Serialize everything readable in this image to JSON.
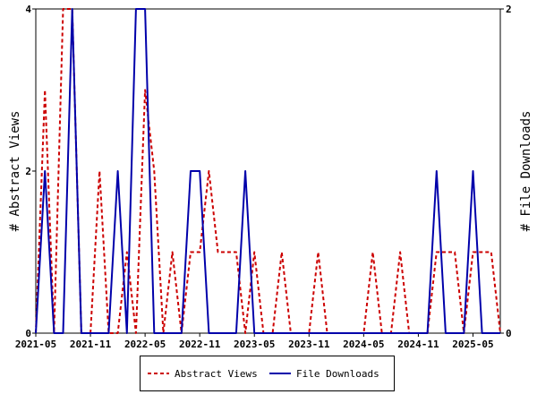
{
  "chart_data": {
    "type": "line",
    "xlabel": "",
    "ylabel_left": "# Abstract Views",
    "ylabel_right": "# File Downloads",
    "x_tick_labels": [
      "2021-05",
      "2021-11",
      "2022-05",
      "2022-11",
      "2023-05",
      "2023-11",
      "2024-05",
      "2024-11",
      "2025-05"
    ],
    "ylim_left": [
      0,
      4
    ],
    "ylim_right": [
      0,
      2
    ],
    "y_ticks_left": [
      0,
      2,
      4
    ],
    "y_ticks_right": [
      0,
      2
    ],
    "x": [
      "2021-05",
      "2021-06",
      "2021-07",
      "2021-08",
      "2021-09",
      "2021-10",
      "2021-11",
      "2021-12",
      "2022-01",
      "2022-02",
      "2022-03",
      "2022-04",
      "2022-05",
      "2022-06",
      "2022-07",
      "2022-08",
      "2022-09",
      "2022-10",
      "2022-11",
      "2022-12",
      "2023-01",
      "2023-02",
      "2023-03",
      "2023-04",
      "2023-05",
      "2023-06",
      "2023-07",
      "2023-08",
      "2023-09",
      "2023-10",
      "2023-11",
      "2023-12",
      "2024-01",
      "2024-02",
      "2024-03",
      "2024-04",
      "2024-05",
      "2024-06",
      "2024-07",
      "2024-08",
      "2024-09",
      "2024-10",
      "2024-11",
      "2024-12",
      "2025-01",
      "2025-02",
      "2025-03",
      "2025-04",
      "2025-05",
      "2025-06",
      "2025-07",
      "2025-08"
    ],
    "series": [
      {
        "name": "Abstract Views",
        "axis": "left",
        "color": "#cc0000",
        "dash": true,
        "values": [
          0,
          3,
          0,
          4,
          4,
          0,
          0,
          2,
          0,
          0,
          1,
          0,
          3,
          2,
          0,
          1,
          0,
          1,
          1,
          2,
          1,
          1,
          1,
          0,
          1,
          0,
          0,
          1,
          0,
          0,
          0,
          1,
          0,
          0,
          0,
          0,
          0,
          1,
          0,
          0,
          1,
          0,
          0,
          0,
          1,
          1,
          1,
          0,
          1,
          1,
          1,
          0
        ]
      },
      {
        "name": "File Downloads",
        "axis": "right",
        "color": "#0000aa",
        "dash": false,
        "values": [
          0,
          1,
          0,
          0,
          2,
          0,
          0,
          0,
          0,
          1,
          0,
          2,
          2,
          0,
          0,
          0,
          0,
          1,
          1,
          0,
          0,
          0,
          0,
          1,
          0,
          0,
          0,
          0,
          0,
          0,
          0,
          0,
          0,
          0,
          0,
          0,
          0,
          0,
          0,
          0,
          0,
          0,
          0,
          0,
          1,
          0,
          0,
          0,
          1,
          0,
          0,
          0
        ]
      }
    ],
    "grid": false,
    "legend_position": "bottom-center"
  },
  "legend": {
    "items": [
      {
        "label": "Abstract Views"
      },
      {
        "label": "File Downloads"
      }
    ]
  }
}
